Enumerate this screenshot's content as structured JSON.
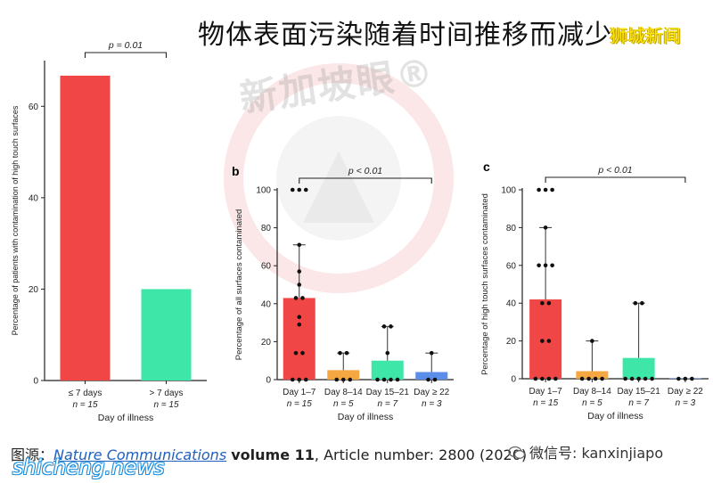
{
  "header": {
    "title": "物体表面污染随着时间推移而减少",
    "brand": "狮城新闻"
  },
  "watermark": {
    "text": "新加坡眼®"
  },
  "footer": {
    "source_prefix": "图源：",
    "publication": "Nature Communications",
    "volume": "volume 11",
    "article": ", Article number: 2800 (2020)",
    "wechat_label": "微信号: kanxinjiapo",
    "site": "shicheng.news"
  },
  "colors": {
    "red": "#f04646",
    "orange": "#f5a742",
    "green": "#3ee6a8",
    "blue": "#5b8ee8",
    "brand_yellow": "#ffe900"
  },
  "chart_data": [
    {
      "type": "bar",
      "panel_label": "",
      "categories": [
        "≤ 7 days",
        "> 7 days"
      ],
      "n_labels": [
        "n = 15",
        "n = 15"
      ],
      "values": [
        66.7,
        20
      ],
      "colors": [
        "#f04646",
        "#3ee6a8"
      ],
      "ylim": [
        0,
        70
      ],
      "yticks": [
        0,
        20,
        40,
        60
      ],
      "ylabel": "Percentage of patients with contamination of high touch surfaces",
      "xlabel": "Day of illness",
      "annotation": "p = 0.01",
      "bracket": [
        0,
        1
      ]
    },
    {
      "type": "bar",
      "panel_label": "b",
      "categories": [
        "Day 1–7",
        "Day 8–14",
        "Day 15–21",
        "Day ≥ 22"
      ],
      "n_labels": [
        "n = 15",
        "n = 5",
        "n = 7",
        "n = 3"
      ],
      "values": [
        43,
        5,
        10,
        4
      ],
      "error_high": [
        71,
        14,
        28,
        14
      ],
      "colors": [
        "#f04646",
        "#f5a742",
        "#3ee6a8",
        "#5b8ee8"
      ],
      "points": [
        [
          100,
          100,
          100,
          71,
          57,
          50,
          43,
          43,
          33,
          29,
          14,
          14,
          0,
          0,
          0
        ],
        [
          14,
          14,
          0,
          0,
          0
        ],
        [
          28,
          28,
          14,
          0,
          0,
          0,
          0
        ],
        [
          14,
          0,
          0
        ]
      ],
      "ylim": [
        0,
        100
      ],
      "yticks": [
        0,
        20,
        40,
        60,
        80,
        100
      ],
      "ylabel": "Percentage of all surfaces contaminated",
      "xlabel": "Day of illness",
      "annotation": "p < 0.01",
      "bracket": [
        0,
        3
      ]
    },
    {
      "type": "bar",
      "panel_label": "c",
      "categories": [
        "Day 1–7",
        "Day 8–14",
        "Day 15–21",
        "Day ≥ 22"
      ],
      "n_labels": [
        "n = 15",
        "n = 5",
        "n = 7",
        "n = 3"
      ],
      "values": [
        42,
        4,
        11,
        0
      ],
      "error_high": [
        80,
        20,
        40,
        0
      ],
      "colors": [
        "#f04646",
        "#f5a742",
        "#3ee6a8",
        "#5b8ee8"
      ],
      "points": [
        [
          100,
          100,
          100,
          80,
          60,
          60,
          60,
          40,
          40,
          20,
          20,
          0,
          0,
          0,
          0
        ],
        [
          20,
          0,
          0,
          0,
          0
        ],
        [
          40,
          40,
          0,
          0,
          0,
          0,
          0
        ],
        [
          0,
          0,
          0
        ]
      ],
      "ylim": [
        0,
        100
      ],
      "yticks": [
        0,
        20,
        40,
        60,
        80,
        100
      ],
      "ylabel": "Percentage of high touch surfaces contaminated",
      "xlabel": "Day of illness",
      "annotation": "p < 0.01",
      "bracket": [
        0,
        3
      ]
    }
  ]
}
